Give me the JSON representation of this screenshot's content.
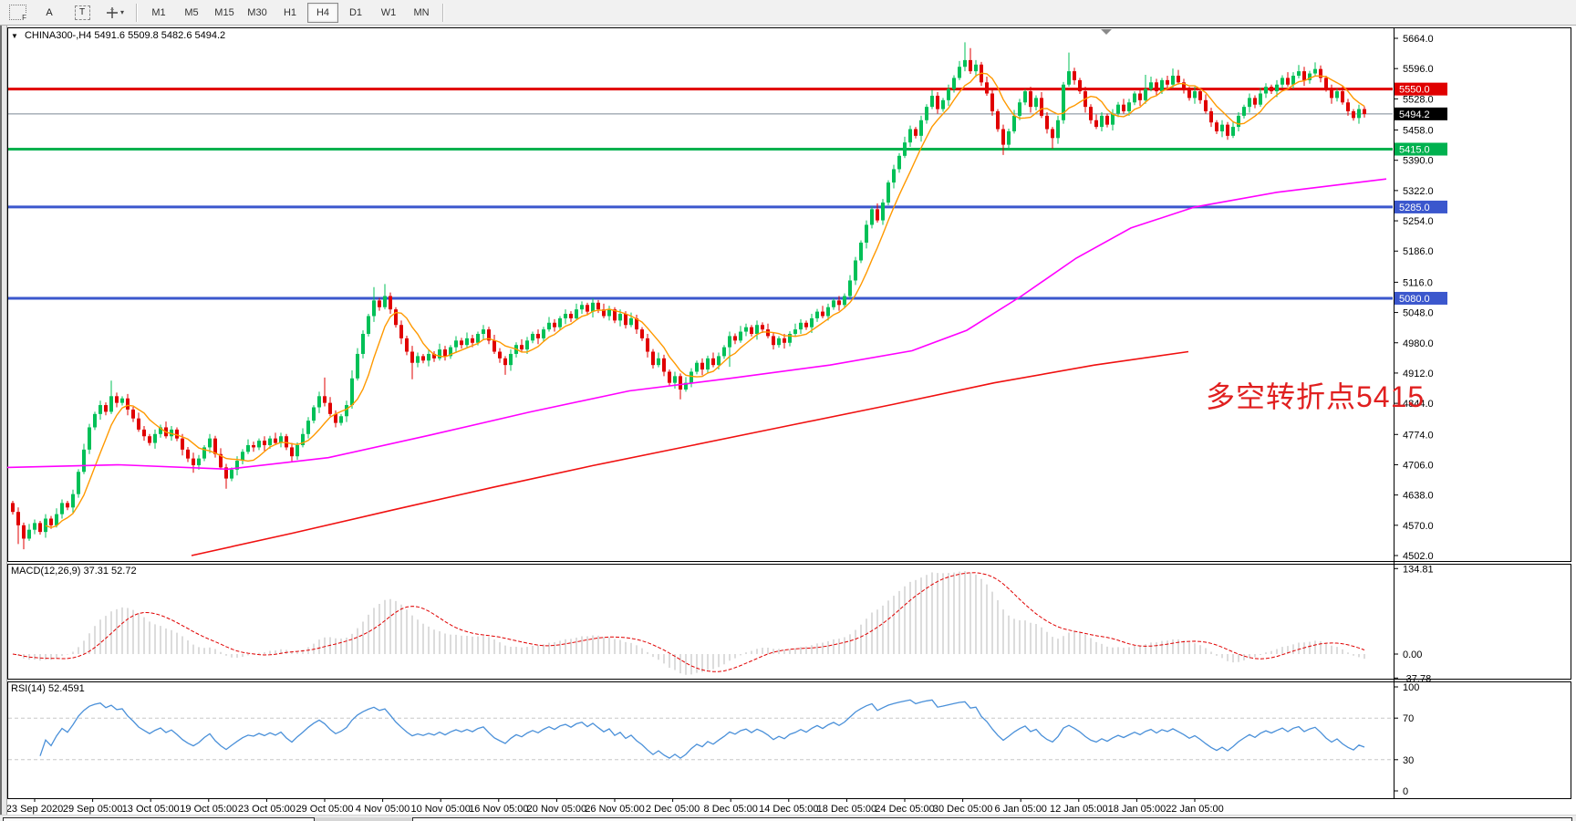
{
  "toolbar": {
    "tools": [
      {
        "id": "grid-f",
        "label": "F"
      },
      {
        "id": "arrow",
        "label": "A"
      },
      {
        "id": "text",
        "label": "T"
      }
    ],
    "timeframes": [
      {
        "label": "M1",
        "active": false
      },
      {
        "label": "M5",
        "active": false
      },
      {
        "label": "M15",
        "active": false
      },
      {
        "label": "M30",
        "active": false
      },
      {
        "label": "H1",
        "active": false
      },
      {
        "label": "H4",
        "active": true
      },
      {
        "label": "D1",
        "active": false
      },
      {
        "label": "W1",
        "active": false
      },
      {
        "label": "MN",
        "active": false
      }
    ]
  },
  "chart": {
    "title": {
      "symbol": "CHINA300-,H4",
      "ohlc": "5491.6 5509.8 5482.6 5494.2",
      "dropdown_icon": "▼"
    },
    "annotation": {
      "text": "多空转折点5415",
      "color": "#e01f1f"
    },
    "quote": {
      "last": "5494.2",
      "badge_color": "#000000"
    },
    "levels": [
      {
        "price": 5550.0,
        "label": "5550.0",
        "color": "#e00000"
      },
      {
        "price": 5415.0,
        "label": "5415.0",
        "color": "#00b14f"
      },
      {
        "price": 5285.0,
        "label": "5285.0",
        "color": "#3b57cd"
      },
      {
        "price": 5080.0,
        "label": "5080.0",
        "color": "#3b57cd"
      }
    ]
  },
  "chart_data": {
    "type": "candlestick-with-indicators",
    "symbol": "CHINA300-",
    "timeframe": "H4",
    "title": "CHINA300-,H4 5491.6 5509.8 5482.6 5494.2",
    "x_labels": [
      "23 Sep 2020",
      "29 Sep 05:00",
      "13 Oct 05:00",
      "19 Oct 05:00",
      "23 Oct 05:00",
      "29 Oct 05:00",
      "4 Nov 05:00",
      "10 Nov 05:00",
      "16 Nov 05:00",
      "20 Nov 05:00",
      "26 Nov 05:00",
      "2 Dec 05:00",
      "8 Dec 05:00",
      "14 Dec 05:00",
      "18 Dec 05:00",
      "24 Dec 05:00",
      "30 Dec 05:00",
      "6 Jan 05:00",
      "12 Jan 05:00",
      "18 Jan 05:00",
      "22 Jan 05:00"
    ],
    "price_axis": {
      "min": 4502.0,
      "max": 5664.0,
      "ticks": [
        5664.0,
        5596.0,
        5528.0,
        5458.0,
        5390.0,
        5322.0,
        5254.0,
        5186.0,
        5116.0,
        5048.0,
        4980.0,
        4912.0,
        4844.0,
        4774.0,
        4706.0,
        4638.0,
        4570.0,
        4502.0
      ]
    },
    "candles": {
      "up_color": "#00c057",
      "down_color": "#e00000",
      "first_open": 4620,
      "closes": [
        4600,
        4570,
        4540,
        4560,
        4575,
        4555,
        4585,
        4570,
        4595,
        4620,
        4610,
        4640,
        4690,
        4740,
        4790,
        4820,
        4840,
        4825,
        4860,
        4845,
        4855,
        4830,
        4810,
        4785,
        4770,
        4755,
        4775,
        4790,
        4770,
        4785,
        4765,
        4740,
        4720,
        4705,
        4720,
        4745,
        4765,
        4730,
        4700,
        4675,
        4695,
        4715,
        4735,
        4750,
        4745,
        4760,
        4750,
        4765,
        4755,
        4770,
        4745,
        4725,
        4750,
        4775,
        4805,
        4835,
        4860,
        4845,
        4820,
        4800,
        4815,
        4840,
        4900,
        4955,
        5000,
        5040,
        5075,
        5060,
        5085,
        5055,
        5020,
        4990,
        4960,
        4935,
        4950,
        4940,
        4955,
        4945,
        4965,
        4950,
        4970,
        4985,
        4975,
        4990,
        4980,
        5000,
        5010,
        4985,
        4960,
        4945,
        4930,
        4955,
        4975,
        4965,
        4985,
        5000,
        4990,
        5010,
        5025,
        5015,
        5035,
        5045,
        5035,
        5055,
        5065,
        5050,
        5070,
        5055,
        5040,
        5055,
        5030,
        5045,
        5020,
        5035,
        5010,
        4990,
        4960,
        4930,
        4945,
        4915,
        4890,
        4905,
        4875,
        4890,
        4915,
        4935,
        4920,
        4945,
        4930,
        4950,
        4970,
        4995,
        4985,
        5005,
        5015,
        5000,
        5020,
        5010,
        4995,
        4975,
        4990,
        4980,
        5000,
        5010,
        5025,
        5015,
        5035,
        5050,
        5040,
        5060,
        5075,
        5065,
        5085,
        5120,
        5165,
        5205,
        5245,
        5280,
        5255,
        5295,
        5340,
        5370,
        5400,
        5430,
        5460,
        5445,
        5480,
        5510,
        5535,
        5505,
        5525,
        5550,
        5575,
        5600,
        5615,
        5590,
        5605,
        5565,
        5540,
        5500,
        5460,
        5425,
        5455,
        5490,
        5520,
        5545,
        5510,
        5530,
        5490,
        5460,
        5440,
        5480,
        5560,
        5590,
        5570,
        5545,
        5510,
        5480,
        5465,
        5490,
        5470,
        5495,
        5515,
        5500,
        5520,
        5540,
        5525,
        5550,
        5565,
        5545,
        5570,
        5560,
        5580,
        5565,
        5550,
        5530,
        5545,
        5525,
        5500,
        5475,
        5455,
        5470,
        5445,
        5465,
        5490,
        5510,
        5530,
        5515,
        5540,
        5555,
        5545,
        5560,
        5575,
        5560,
        5580,
        5590,
        5570,
        5585,
        5595,
        5575,
        5550,
        5530,
        5545,
        5520,
        5500,
        5485,
        5505,
        5494
      ],
      "wick_pattern": [
        5,
        10,
        6,
        13,
        8
      ],
      "spike_highs": {
        "18": 4895,
        "57": 4902,
        "62": 4918,
        "66": 5105,
        "68": 5112,
        "153": 5132,
        "174": 5655,
        "175": 5642,
        "193": 5632,
        "207": 5582,
        "212": 5596,
        "235": 5604,
        "238": 5610
      },
      "spike_lows": {
        "1": 4528,
        "2": 4516,
        "33": 4688,
        "39": 4652,
        "73": 4898,
        "90": 4908,
        "122": 4853,
        "131": 4926,
        "181": 5402,
        "190": 5416,
        "222": 5436
      }
    },
    "overlays": {
      "ma_fast": {
        "type": "sma",
        "period": 7,
        "color": "#ff9900"
      },
      "ma_mid": {
        "color": "#ff00ff",
        "points": [
          [
            8,
            4700
          ],
          [
            130,
            4706
          ],
          [
            250,
            4696
          ],
          [
            360,
            4722
          ],
          [
            470,
            4772
          ],
          [
            580,
            4824
          ],
          [
            690,
            4872
          ],
          [
            800,
            4900
          ],
          [
            910,
            4930
          ],
          [
            1000,
            4962
          ],
          [
            1060,
            5008
          ],
          [
            1120,
            5085
          ],
          [
            1180,
            5170
          ],
          [
            1240,
            5238
          ],
          [
            1310,
            5285
          ],
          [
            1400,
            5318
          ],
          [
            1520,
            5348
          ]
        ]
      },
      "ma_slow": {
        "color": "#f01010",
        "points": [
          [
            210,
            4502
          ],
          [
            320,
            4552
          ],
          [
            430,
            4604
          ],
          [
            540,
            4655
          ],
          [
            650,
            4704
          ],
          [
            760,
            4750
          ],
          [
            870,
            4796
          ],
          [
            980,
            4842
          ],
          [
            1090,
            4890
          ],
          [
            1200,
            4930
          ],
          [
            1303,
            4960
          ]
        ]
      }
    },
    "macd": {
      "label": "MACD(12,26,9) 37.31 52.72",
      "params": [
        12,
        26,
        9
      ],
      "values": [
        37.31,
        52.72
      ],
      "axis_labels": [
        "134.81",
        "0.00",
        "-37.78"
      ],
      "axis_values": [
        134.81,
        0.0,
        -37.78
      ],
      "hist_color": "#b8b8b8",
      "signal_color": "#e00000"
    },
    "rsi": {
      "label": "RSI(14) 52.4591",
      "period": 14,
      "value": 52.4591,
      "levels": [
        70,
        30
      ],
      "axis_labels": [
        "100",
        "70",
        "30",
        "0"
      ],
      "axis_values": [
        100,
        70,
        30,
        0
      ],
      "color": "#4a90d9"
    }
  }
}
